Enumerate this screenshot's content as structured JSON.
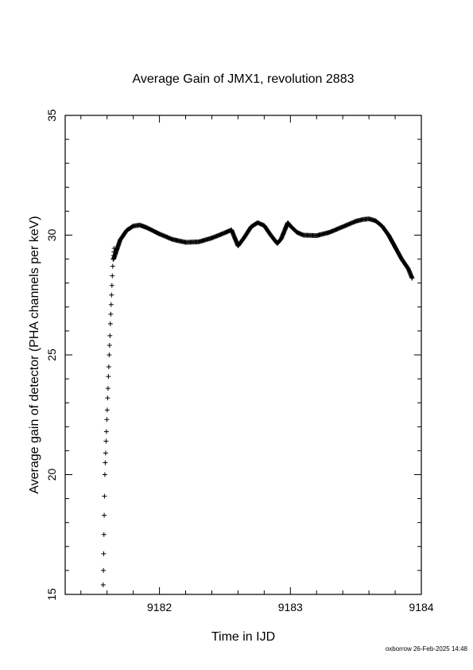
{
  "chart_data": {
    "type": "scatter",
    "title": "Average Gain of JMX1, revolution 2883",
    "xlabel": "Time in IJD",
    "ylabel": "Average gain of detector (PHA channels per keV)",
    "xlim": [
      9181.28,
      9184.0
    ],
    "ylim": [
      15,
      35
    ],
    "xticks": [
      9182,
      9183,
      9184
    ],
    "yticks": [
      15,
      20,
      25,
      30,
      35
    ],
    "xtick_labels": [
      "9182",
      "9183",
      "9184"
    ],
    "ytick_labels": [
      "15",
      "20",
      "25",
      "30",
      "35"
    ],
    "marker": "+",
    "color": "#000000",
    "grid": false,
    "legend": "none",
    "ramp": {
      "x": [
        9181.57,
        9181.572,
        9181.574,
        9181.576,
        9181.578,
        9181.58,
        9181.583,
        9181.586,
        9181.589,
        9181.592,
        9181.595,
        9181.598,
        9181.601,
        9181.604,
        9181.607,
        9181.61,
        9181.613,
        9181.616,
        9181.619,
        9181.622,
        9181.625,
        9181.628,
        9181.631,
        9181.634,
        9181.637,
        9181.64,
        9181.643,
        9181.646,
        9181.649,
        9181.652,
        9181.655
      ],
      "y": [
        15.4,
        16.0,
        16.7,
        17.5,
        18.3,
        19.1,
        20.0,
        20.5,
        20.9,
        21.4,
        21.8,
        22.3,
        22.7,
        23.2,
        23.6,
        24.1,
        24.5,
        25.0,
        25.4,
        25.8,
        26.3,
        26.7,
        27.1,
        27.5,
        27.9,
        28.3,
        28.7,
        29.0,
        29.15,
        29.3,
        29.45
      ]
    },
    "curve": {
      "x": [
        9181.65,
        9181.7,
        9181.75,
        9181.8,
        9181.85,
        9181.9,
        9182.0,
        9182.1,
        9182.2,
        9182.3,
        9182.4,
        9182.5,
        9182.55,
        9182.6,
        9182.65,
        9182.7,
        9182.75,
        9182.8,
        9182.85,
        9182.9,
        9182.93,
        9182.96,
        9182.98,
        9183.0,
        9183.05,
        9183.1,
        9183.2,
        9183.3,
        9183.4,
        9183.5,
        9183.55,
        9183.6,
        9183.65,
        9183.7,
        9183.75,
        9183.8,
        9183.85,
        9183.9,
        9183.93
      ],
      "y": [
        29.0,
        29.8,
        30.2,
        30.38,
        30.42,
        30.32,
        30.05,
        29.82,
        29.7,
        29.72,
        29.88,
        30.1,
        30.22,
        29.55,
        29.92,
        30.35,
        30.52,
        30.4,
        30.0,
        29.65,
        29.85,
        30.25,
        30.52,
        30.38,
        30.12,
        30.0,
        29.98,
        30.12,
        30.35,
        30.58,
        30.65,
        30.68,
        30.6,
        30.38,
        30.0,
        29.5,
        29.0,
        28.6,
        28.2
      ]
    }
  },
  "footer": {
    "stamp": "oxborrow 26-Feb-2025 14:48"
  }
}
